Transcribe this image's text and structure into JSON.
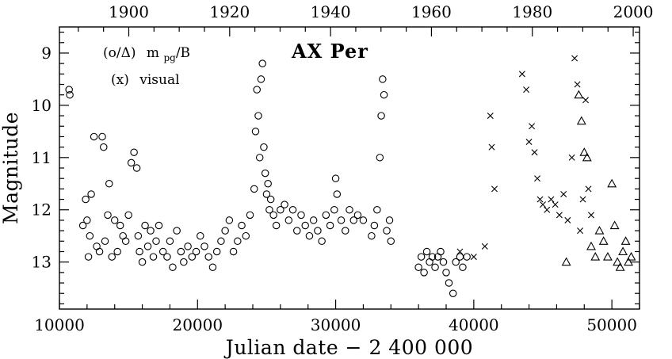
{
  "chart_data": {
    "type": "scatter",
    "title": "AX Per",
    "xlabel": "Julian date − 2 400 000",
    "ylabel": "Magnitude",
    "xlim": [
      10000,
      52000
    ],
    "ylim": [
      13.9,
      8.5
    ],
    "y_inverted": true,
    "top_axis": {
      "label": "",
      "ticks": [
        1900,
        1920,
        1940,
        1960,
        1980,
        2000
      ],
      "tick_jd": [
        15020,
        22325,
        29630,
        36935,
        44240,
        51545
      ]
    },
    "x_ticks": [
      10000,
      20000,
      30000,
      40000,
      50000
    ],
    "y_ticks": [
      9,
      10,
      11,
      12,
      13
    ],
    "legend": [
      {
        "symbol": "(o/Δ)",
        "text": "m_pg/B"
      },
      {
        "symbol": "(x)",
        "text": "visual"
      }
    ],
    "grid": false,
    "legend_position": "top-left",
    "series": [
      {
        "name": "photographic (o)",
        "marker": "circle",
        "x": [
          10700,
          10750,
          11700,
          11900,
          12000,
          12100,
          12200,
          12300,
          12500,
          12700,
          12900,
          13100,
          13200,
          13300,
          13500,
          13600,
          13800,
          14000,
          14200,
          14400,
          14600,
          14800,
          15000,
          15200,
          15400,
          15600,
          15700,
          15800,
          16000,
          16200,
          16400,
          16600,
          16800,
          17000,
          17200,
          17500,
          17800,
          18000,
          18200,
          18500,
          18800,
          19000,
          19300,
          19600,
          19900,
          20200,
          20500,
          20800,
          21100,
          21400,
          21700,
          22000,
          22300,
          22600,
          22900,
          23200,
          23500,
          23800,
          24100,
          24200,
          24300,
          24400,
          24500,
          24600,
          24700,
          24800,
          24900,
          25000,
          25100,
          25200,
          25300,
          25500,
          25700,
          26000,
          26300,
          26600,
          26900,
          27200,
          27500,
          27800,
          28100,
          28400,
          28700,
          29000,
          29300,
          29600,
          29900,
          30000,
          30100,
          30400,
          30700,
          31000,
          31300,
          31600,
          32000,
          32600,
          32800,
          33000,
          33200,
          33300,
          33400,
          33500,
          33700,
          33900,
          34000,
          36000,
          36200,
          36400,
          36600,
          36800,
          37000,
          37200,
          37400,
          37600,
          37800,
          38000,
          38200,
          38500,
          38700,
          39000,
          39200,
          39500
        ],
        "y": [
          9.7,
          9.8,
          12.3,
          11.8,
          12.2,
          12.9,
          12.5,
          11.7,
          10.6,
          12.7,
          12.8,
          10.6,
          10.8,
          12.6,
          12.1,
          11.5,
          12.9,
          12.2,
          12.8,
          12.3,
          12.5,
          12.6,
          12.1,
          11.1,
          10.9,
          11.2,
          12.5,
          12.8,
          13.0,
          12.3,
          12.7,
          12.4,
          12.9,
          12.6,
          12.3,
          12.8,
          12.9,
          12.6,
          13.1,
          12.4,
          12.8,
          13.0,
          12.7,
          12.9,
          12.8,
          12.5,
          12.7,
          12.9,
          13.1,
          12.8,
          12.6,
          12.4,
          12.2,
          12.8,
          12.6,
          12.3,
          12.5,
          12.1,
          11.6,
          10.5,
          9.7,
          10.2,
          11.0,
          9.5,
          9.2,
          10.8,
          11.3,
          11.7,
          11.5,
          12.0,
          11.8,
          12.1,
          12.3,
          12.0,
          11.9,
          12.2,
          12.0,
          12.4,
          12.1,
          12.3,
          12.5,
          12.2,
          12.4,
          12.6,
          12.1,
          12.3,
          12.0,
          11.4,
          11.7,
          12.2,
          12.4,
          12.0,
          12.2,
          12.1,
          12.2,
          12.5,
          12.3,
          12.0,
          11.0,
          10.2,
          9.5,
          9.8,
          12.4,
          12.2,
          12.6,
          13.1,
          12.9,
          13.2,
          12.8,
          13.0,
          12.9,
          13.1,
          12.9,
          12.8,
          13.0,
          13.2,
          13.4,
          13.6,
          13.0,
          12.9,
          13.1,
          12.9
        ]
      },
      {
        "name": "visual (x)",
        "marker": "x",
        "x": [
          39000,
          40000,
          40800,
          41200,
          41300,
          41500,
          43500,
          43800,
          44000,
          44200,
          44400,
          44600,
          44800,
          45000,
          45300,
          45600,
          45900,
          46200,
          46500,
          46800,
          47100,
          47300,
          47500,
          47700,
          47900,
          48100,
          48300,
          48500
        ],
        "y": [
          12.8,
          12.9,
          12.7,
          10.2,
          10.8,
          11.6,
          9.4,
          9.7,
          10.7,
          10.4,
          10.9,
          11.4,
          11.8,
          11.9,
          12.0,
          11.8,
          11.9,
          12.1,
          11.7,
          12.2,
          11.0,
          9.1,
          9.6,
          12.4,
          11.8,
          9.9,
          11.6,
          12.1
        ]
      },
      {
        "name": "B (Δ)",
        "marker": "triangle",
        "x": [
          46700,
          47600,
          47800,
          48000,
          48200,
          48500,
          48800,
          49100,
          49400,
          49700,
          50000,
          50200,
          50400,
          50600,
          50800,
          51000,
          51200,
          51400
        ],
        "y": [
          13.0,
          9.8,
          10.3,
          10.9,
          11.0,
          12.7,
          12.9,
          12.4,
          12.6,
          12.9,
          11.5,
          12.3,
          13.0,
          13.1,
          12.8,
          12.6,
          13.0,
          12.9
        ]
      }
    ]
  }
}
